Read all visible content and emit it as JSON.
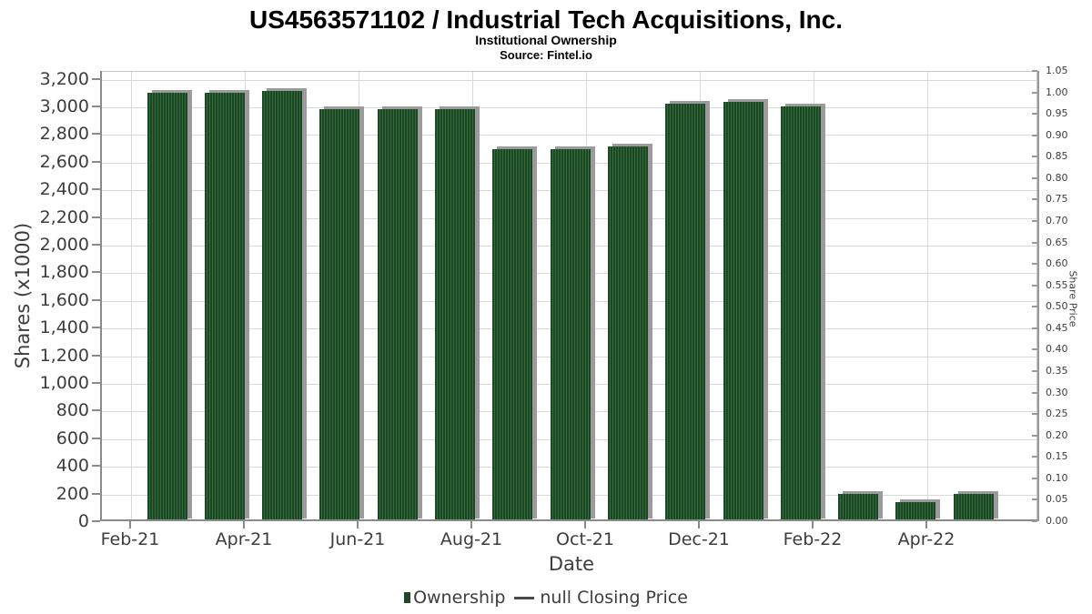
{
  "header": {
    "title": "US4563571102 / Industrial Tech Acquisitions, Inc.",
    "subtitle": "Institutional Ownership",
    "source": "Source: Fintel.io"
  },
  "axes": {
    "left_title": "Shares (x1000)",
    "bottom_title": "Date",
    "right_title": "Share Price"
  },
  "legend": {
    "ownership_label": "Ownership",
    "separator": "—",
    "closing_price_label": "null Closing Price"
  },
  "colors": {
    "bar": "#1d4826",
    "bar_stripe": "#346b3a",
    "shadow": "#9b9b9b",
    "grid": "#d9d9d9",
    "axis": "#8a8a8a",
    "text": "#3d3d3d"
  },
  "chart_data": {
    "type": "bar",
    "title": "US4563571102 / Industrial Tech Acquisitions, Inc.",
    "subtitle": "Institutional Ownership",
    "source": "Source: Fintel.io",
    "xlabel": "Date",
    "ylabel": "Shares (x1000)",
    "y2label": "Share Price",
    "categories": [
      "Mar-21",
      "Apr-21",
      "May-21",
      "Jun-21",
      "Jul-21",
      "Aug-21",
      "Sep-21",
      "Oct-21",
      "Nov-21",
      "Dec-21",
      "Jan-22",
      "Feb-22",
      "Mar-22",
      "Apr-22",
      "May-22"
    ],
    "series": [
      {
        "name": "Ownership",
        "type": "bar",
        "values": [
          3100,
          3100,
          3110,
          2980,
          2980,
          2980,
          2690,
          2690,
          2710,
          3020,
          3030,
          3000,
          200,
          140,
          200
        ]
      },
      {
        "name": "null Closing Price",
        "type": "line",
        "values": []
      }
    ],
    "xtick_labels": [
      "Feb-21",
      "Apr-21",
      "Jun-21",
      "Aug-21",
      "Oct-21",
      "Dec-21",
      "Feb-22",
      "Apr-22"
    ],
    "ylim": [
      0,
      3200
    ],
    "ytick_step_left": 200,
    "ytick_labels_left": [
      "0",
      "200",
      "400",
      "600",
      "800",
      "1,000",
      "1,200",
      "1,400",
      "1,600",
      "1,800",
      "2,000",
      "2,200",
      "2,400",
      "2,600",
      "2,800",
      "3,000",
      "3,200"
    ],
    "y2lim": [
      0,
      1.05
    ],
    "ytick_step_right": 0.05,
    "ytick_labels_right": [
      "0.00",
      "0.05",
      "0.10",
      "0.15",
      "0.20",
      "0.25",
      "0.30",
      "0.35",
      "0.40",
      "0.45",
      "0.50",
      "0.55",
      "0.60",
      "0.65",
      "0.70",
      "0.75",
      "0.80",
      "0.85",
      "0.90",
      "0.95",
      "1.00",
      "1.05"
    ],
    "grid": true,
    "legend_position": "bottom"
  }
}
